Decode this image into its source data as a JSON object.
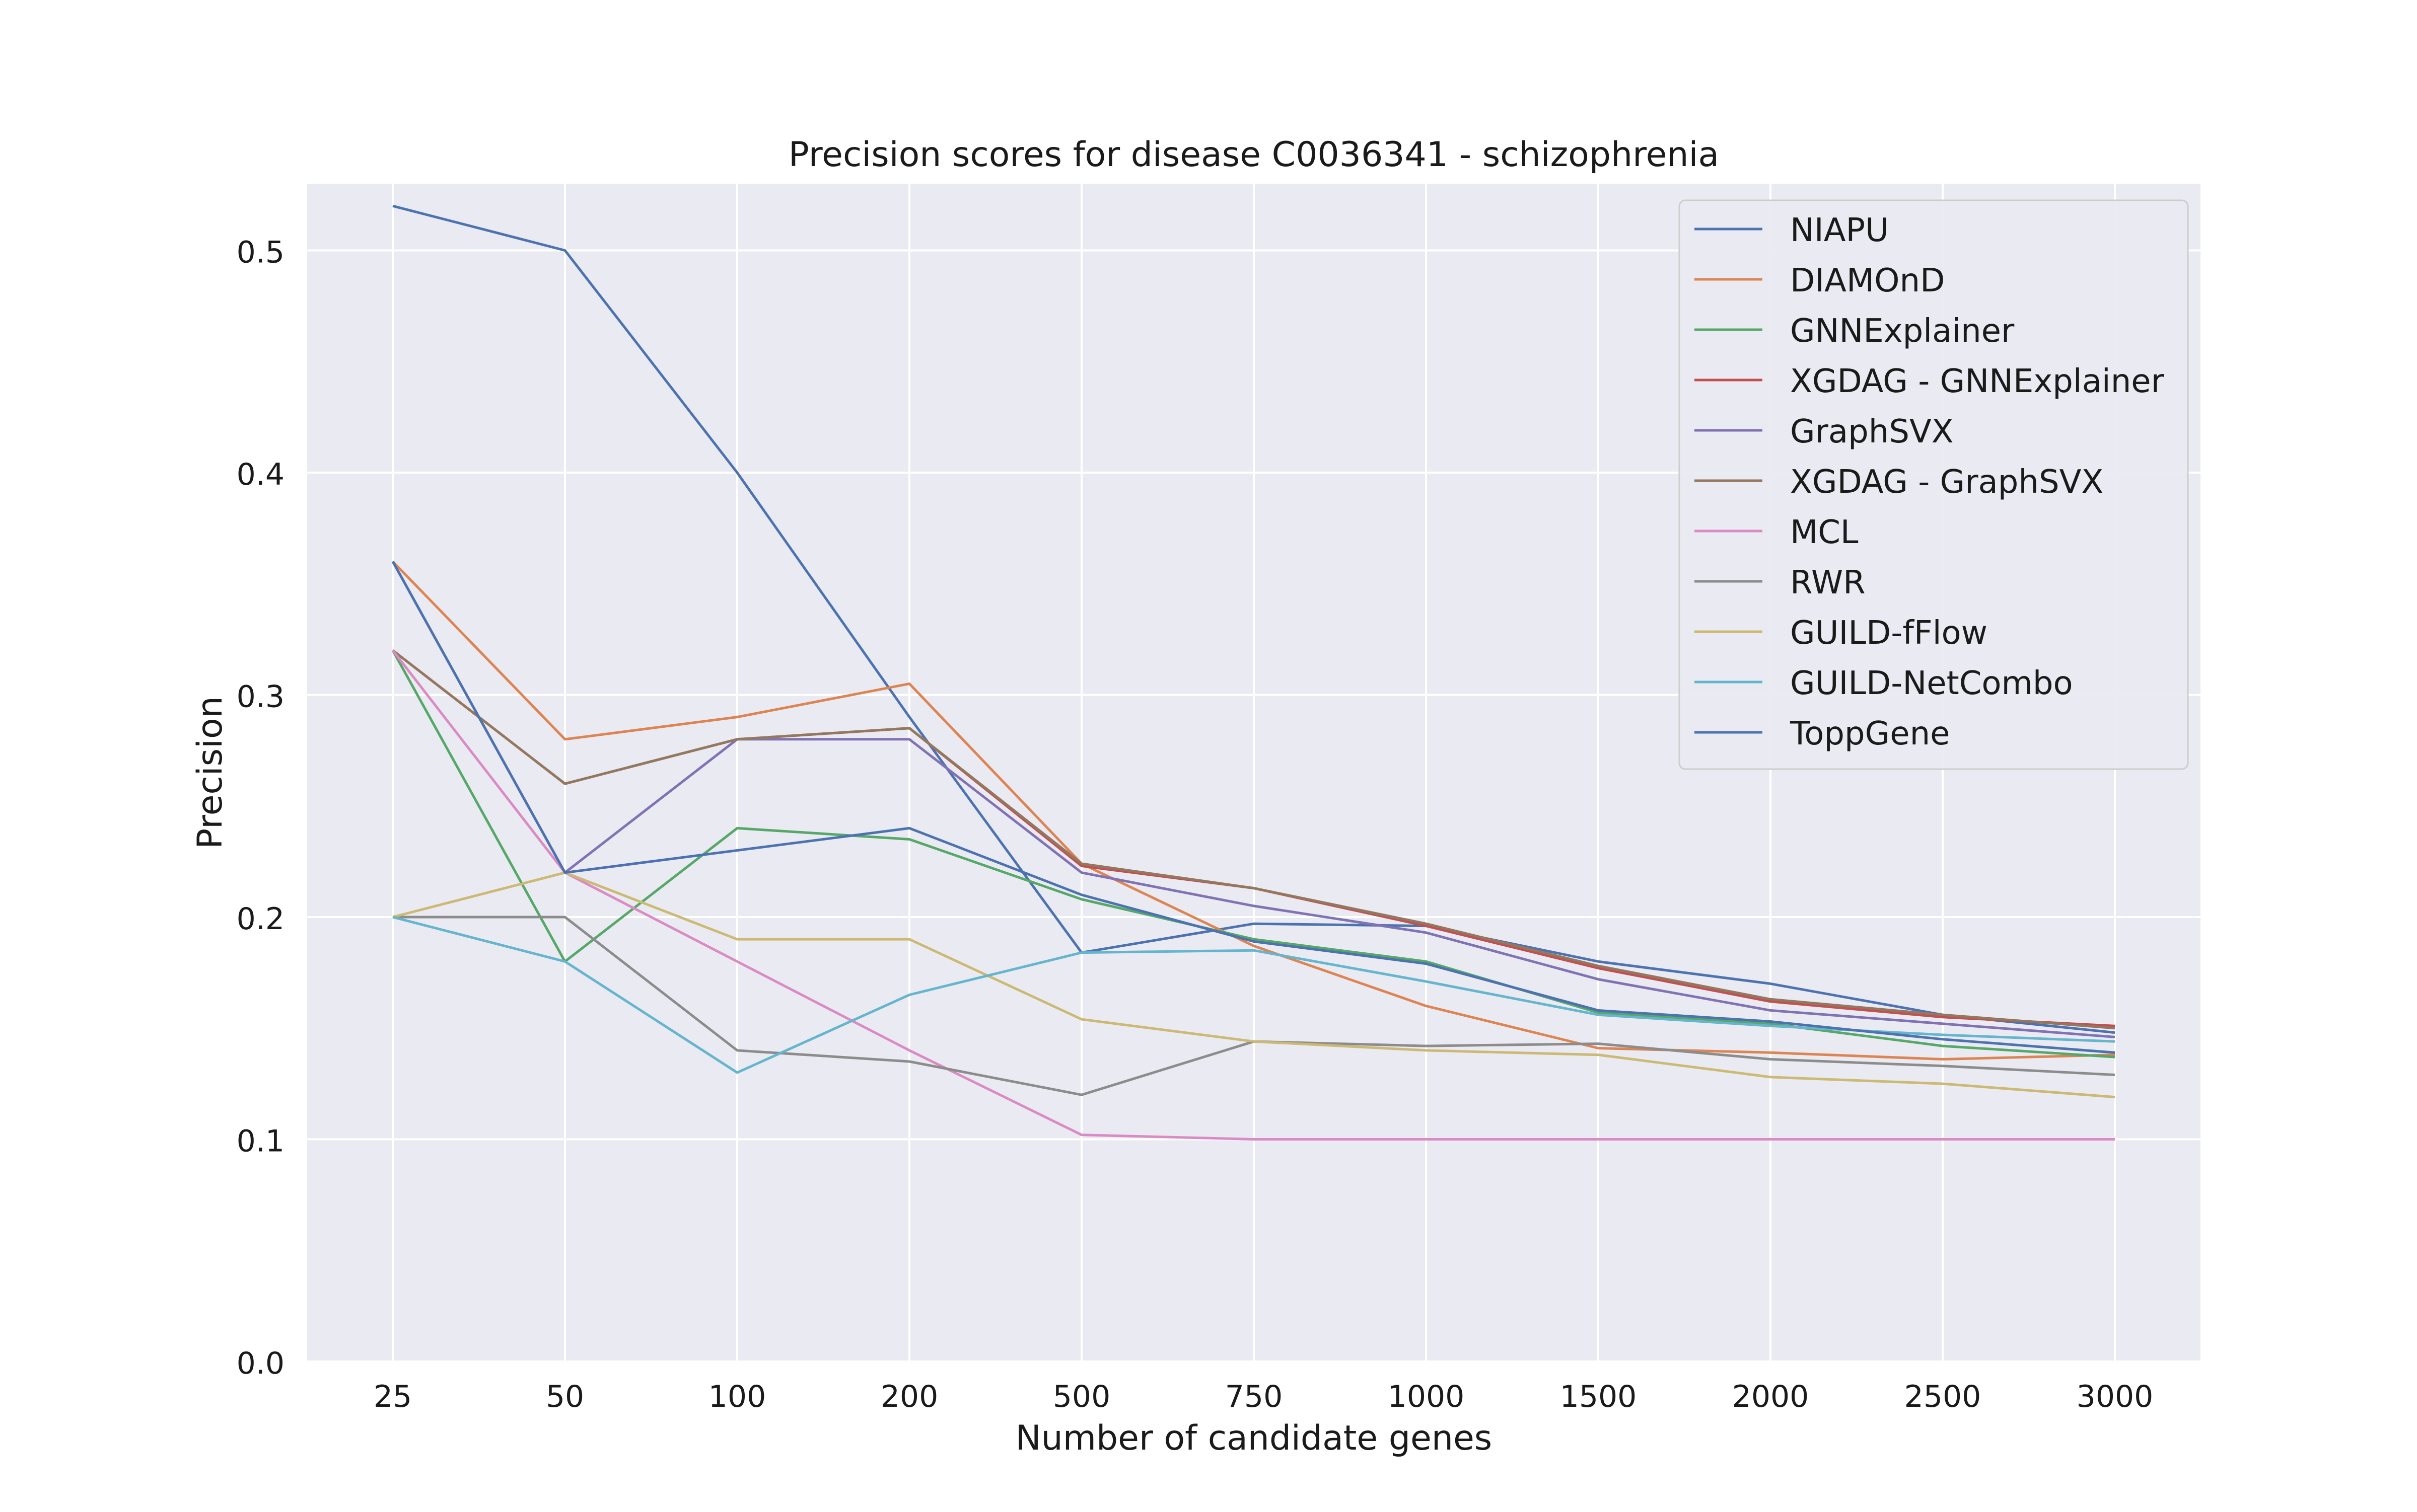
{
  "chart_data": {
    "type": "line",
    "title": "Precision scores for disease C0036341 - schizophrenia",
    "xlabel": "Number of candidate genes",
    "ylabel": "Precision",
    "categories": [
      "25",
      "50",
      "100",
      "200",
      "500",
      "750",
      "1000",
      "1500",
      "2000",
      "2500",
      "3000"
    ],
    "ylim": [
      0,
      0.53
    ],
    "yticks": [
      "0.0",
      "0.1",
      "0.2",
      "0.3",
      "0.4",
      "0.5"
    ],
    "grid": true,
    "legend_position": "top-right",
    "series": [
      {
        "name": "NIAPU",
        "color": "#4c72b0",
        "values": [
          0.52,
          0.5,
          0.4,
          0.29,
          0.184,
          0.197,
          0.196,
          0.18,
          0.17,
          0.156,
          0.148
        ]
      },
      {
        "name": "DIAMOnD",
        "color": "#dd8452",
        "values": [
          0.36,
          0.28,
          0.29,
          0.305,
          0.224,
          0.187,
          0.16,
          0.141,
          0.139,
          0.136,
          0.138
        ]
      },
      {
        "name": "GNNExplainer",
        "color": "#55a868",
        "values": [
          0.32,
          0.18,
          0.24,
          0.235,
          0.208,
          0.19,
          0.18,
          0.157,
          0.152,
          0.142,
          0.137
        ]
      },
      {
        "name": "XGDAG - GNNExplainer",
        "color": "#c44e52",
        "values": [
          0.32,
          0.26,
          0.28,
          0.285,
          0.223,
          0.213,
          0.196,
          0.177,
          0.162,
          0.155,
          0.151
        ]
      },
      {
        "name": "GraphSVX",
        "color": "#8172b3",
        "values": [
          0.36,
          0.22,
          0.28,
          0.28,
          0.22,
          0.205,
          0.193,
          0.172,
          0.158,
          0.152,
          0.146
        ]
      },
      {
        "name": "XGDAG - GraphSVX",
        "color": "#937860",
        "values": [
          0.32,
          0.26,
          0.28,
          0.285,
          0.224,
          0.213,
          0.197,
          0.178,
          0.163,
          0.156,
          0.15
        ]
      },
      {
        "name": "MCL",
        "color": "#da8bc3",
        "values": [
          0.32,
          0.22,
          0.18,
          0.14,
          0.102,
          0.1,
          0.1,
          0.1,
          0.1,
          0.1,
          0.1
        ]
      },
      {
        "name": "RWR",
        "color": "#8c8c8c",
        "values": [
          0.2,
          0.2,
          0.14,
          0.135,
          0.12,
          0.144,
          0.142,
          0.143,
          0.136,
          0.133,
          0.129
        ]
      },
      {
        "name": "GUILD-fFlow",
        "color": "#ccb974",
        "values": [
          0.2,
          0.22,
          0.19,
          0.19,
          0.154,
          0.144,
          0.14,
          0.138,
          0.128,
          0.125,
          0.119
        ]
      },
      {
        "name": "GUILD-NetCombo",
        "color": "#64b5cd",
        "values": [
          0.2,
          0.18,
          0.13,
          0.165,
          0.184,
          0.185,
          0.171,
          0.156,
          0.151,
          0.147,
          0.144
        ]
      },
      {
        "name": "ToppGene",
        "color": "#4c72b0",
        "values": [
          0.36,
          0.22,
          0.23,
          0.24,
          0.21,
          0.189,
          0.179,
          0.158,
          0.153,
          0.145,
          0.139
        ]
      }
    ]
  }
}
